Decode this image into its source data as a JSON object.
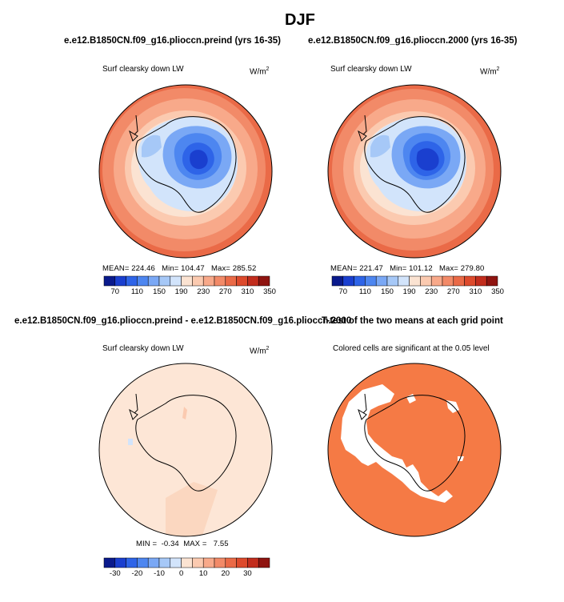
{
  "figure": {
    "season": "DJF"
  },
  "panels": {
    "top_left": {
      "case_title": "e.e12.B1850CN.f09_g16.pliocсn.preind (yrs 16-35)",
      "variable": "Surf clearsky down LW",
      "units_base": "W/m",
      "units_exp": "2",
      "mean_label": "MEAN=",
      "mean_value": "224.46",
      "min_label": "Min=",
      "min_value": "104.47",
      "max_label": "Max=",
      "max_value": "285.52"
    },
    "top_right": {
      "case_title": "e.e12.B1850CN.f09_g16.pliocсn.2000 (yrs 16-35)",
      "variable": "Surf clearsky down LW",
      "units_base": "W/m",
      "units_exp": "2",
      "mean_label": "MEAN=",
      "mean_value": "221.47",
      "min_label": "Min=",
      "min_value": "101.12",
      "max_label": "Max=",
      "max_value": "279.80"
    },
    "bottom_left": {
      "case_title": "e.e12.B1850CN.f09_g16.pliocсn.preind - e.e12.B1850CN.f09_g16.pliocсn.2000",
      "variable": "Surf clearsky down LW",
      "units_base": "W/m",
      "units_exp": "2",
      "min_label": "MIN =",
      "min_value": "-0.34",
      "max_label": "MAX =",
      "max_value": "7.55"
    },
    "bottom_right": {
      "title": "T-test of the two means at each grid point",
      "subtitle": "Colored cells are significant at the 0.05 level"
    }
  },
  "colorbars": {
    "absolute": {
      "tick_labels": [
        "70",
        "110",
        "150",
        "190",
        "230",
        "270",
        "310",
        "350"
      ],
      "colors": [
        "#0a1a8c",
        "#1a3fcf",
        "#2e64e8",
        "#4d86f0",
        "#7aa8f5",
        "#a6c8f7",
        "#d2e4fb",
        "#fbe3d2",
        "#fbcab0",
        "#f8a98a",
        "#f28a68",
        "#ea6a47",
        "#dd4a2c",
        "#c22d1d",
        "#8f1410"
      ]
    },
    "difference": {
      "tick_labels": [
        "-30",
        "-20",
        "-10",
        "0",
        "10",
        "20",
        "30"
      ],
      "colors": [
        "#0a1a8c",
        "#1a3fcf",
        "#2e64e8",
        "#4d86f0",
        "#7aa8f5",
        "#a6c8f7",
        "#d2e4fb",
        "#fbe3d2",
        "#fbcab0",
        "#f8a98a",
        "#f28a68",
        "#ea6a47",
        "#dd4a2c",
        "#c22d1d",
        "#8f1410"
      ]
    }
  },
  "colors": {
    "significant": "#f57a45",
    "diff_background": "#fde6d6",
    "diff_stripe": "#fbd7c0"
  }
}
